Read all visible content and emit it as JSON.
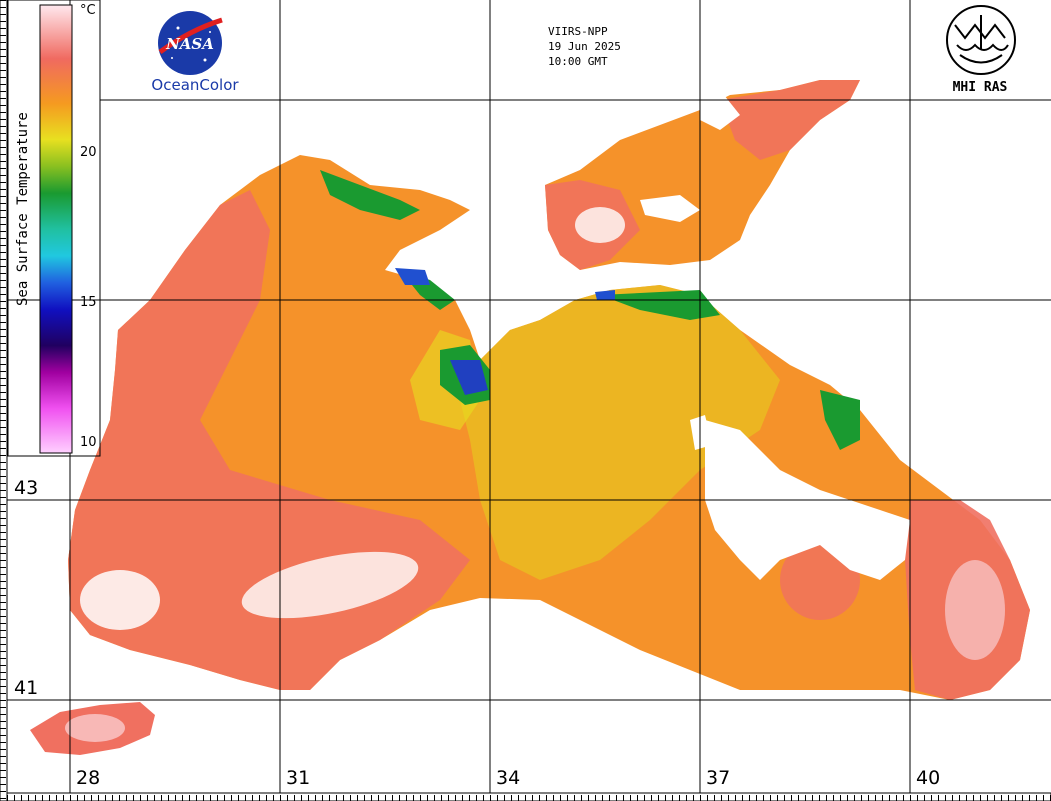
{
  "legend": {
    "title": "Sea Surface Temperature",
    "unit": "°C",
    "ticks": [
      {
        "value": "20",
        "t": 0.333
      },
      {
        "value": "15",
        "t": 0.667
      },
      {
        "value": "10",
        "t": 0.98
      }
    ]
  },
  "header": {
    "agency": "OceanColor",
    "nasa_wordmark": "NASA",
    "sensor": "VIIRS-NPP",
    "date": "19 Jun 2025",
    "time": "10:00 GMT",
    "institute": "MHI RAS"
  },
  "grid": {
    "latitudes": [
      "43",
      "41"
    ],
    "longitudes": [
      "28",
      "31",
      "34",
      "37",
      "40"
    ]
  },
  "colors": {
    "warm": "#f07060",
    "hot": "#ffffff",
    "mid": "#f59a20",
    "cool": "#e8e020",
    "green": "#1a9a30",
    "blue": "#2040c0",
    "cloud": "#ffffff",
    "land": "#ffffff",
    "grid_line": "#000000"
  }
}
